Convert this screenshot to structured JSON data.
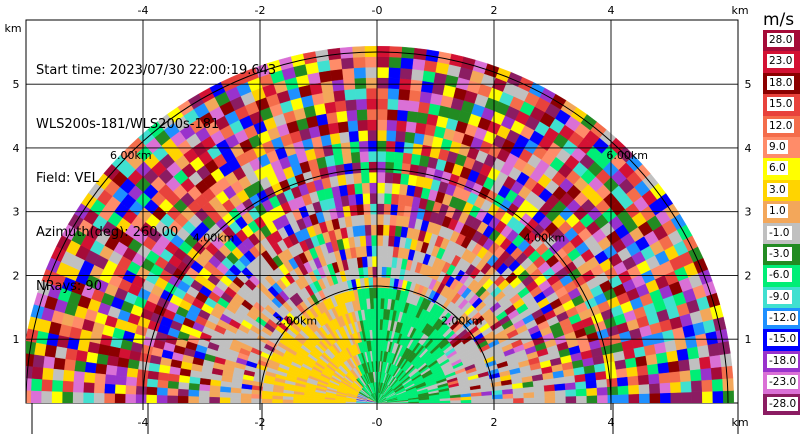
{
  "info": {
    "start_time": "Start time: 2023/07/30 22:00:19.643",
    "station": "WLS200s-181/WLS200s-181",
    "field": "Field: VEL",
    "azimuth": "Azimuth(deg): 260.00",
    "nrays": "NRays: 90"
  },
  "axes": {
    "unit_label_top_right": "km",
    "unit_label_top_left": "km",
    "unit_label_bottom": "km",
    "x_ticks": [
      "-4",
      "-2",
      "-0",
      "2",
      "4"
    ],
    "y_ticks": [
      "5",
      "4",
      "3",
      "2",
      "1"
    ]
  },
  "range_rings": [
    {
      "label": "2.00km"
    },
    {
      "label": "4.00km"
    },
    {
      "label": "6.00km"
    }
  ],
  "colorbar": {
    "title": "m/s",
    "labels": [
      "28.0",
      "23.0",
      "18.0",
      "15.0",
      "12.0",
      "9.0",
      "6.0",
      "3.0",
      "1.0",
      "-1.0",
      "-3.0",
      "-6.0",
      "-9.0",
      "-12.0",
      "-15.0",
      "-18.0",
      "-23.0",
      "-28.0"
    ],
    "colors": [
      "#a50b38",
      "#d31133",
      "#8b0000",
      "#e8423c",
      "#f46d4b",
      "#ff8c69",
      "#ffff00",
      "#ffd400",
      "#f3a75a",
      "#c0c0c0",
      "#228b22",
      "#00ee76",
      "#40e0d0",
      "#1e90ff",
      "#0000ff",
      "#9932cc",
      "#da70d6",
      "#8b1c62"
    ]
  }
}
